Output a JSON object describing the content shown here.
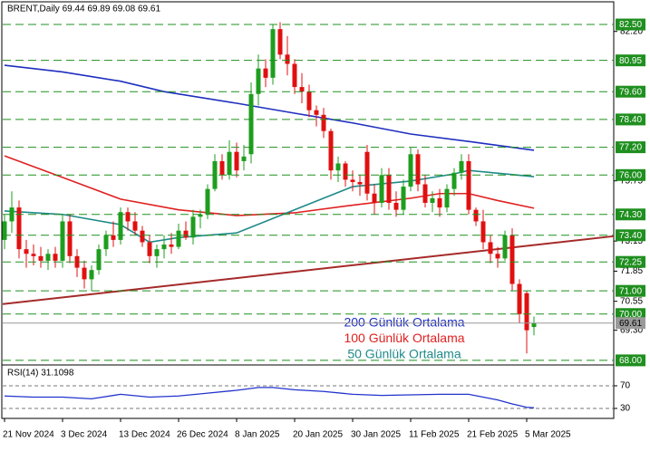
{
  "chart_data": [
    {
      "type": "candlestick",
      "title": "BRENT,Daily  69.44 69.89 69.08 69.61",
      "categories": [
        "21 Nov 2024",
        null,
        null,
        null,
        null,
        null,
        null,
        null,
        "3 Dec 2024",
        null,
        null,
        null,
        null,
        null,
        null,
        null,
        "13 Dec 2024",
        null,
        null,
        null,
        null,
        null,
        null,
        null,
        "26 Dec 2024",
        null,
        null,
        null,
        null,
        null,
        null,
        null,
        "8 Jan 2025",
        null,
        null,
        null,
        null,
        null,
        null,
        null,
        "20 Jan 2025",
        null,
        null,
        null,
        null,
        null,
        null,
        null,
        "30 Jan 2025",
        null,
        null,
        null,
        null,
        null,
        null,
        null,
        "11 Feb 2025",
        null,
        null,
        null,
        null,
        null,
        null,
        null,
        "21 Feb 2025",
        null,
        null,
        null,
        null,
        null,
        null,
        null,
        "5 Mar 2025",
        null
      ],
      "open": [
        73.2,
        74.0,
        74.6,
        72.8,
        72.6,
        72.5,
        72.3,
        72.6,
        72.3,
        74.0,
        72.5,
        72.0,
        71.5,
        71.9,
        72.8,
        73.4,
        73.2,
        74.4,
        74.0,
        73.6,
        73.1,
        72.5,
        72.8,
        73.0,
        72.9,
        73.6,
        73.3,
        74.2,
        74.3,
        75.4,
        76.6,
        76.0,
        77.0,
        76.6,
        76.9,
        79.5,
        80.6,
        80.2,
        82.3,
        81.2,
        80.8,
        79.8,
        79.6,
        78.8,
        78.6,
        77.9,
        76.2,
        76.5,
        75.8,
        75.7,
        77.0,
        75.2,
        74.8,
        76.0,
        74.8,
        74.5,
        75.5,
        76.9,
        75.6,
        74.8,
        75.0,
        74.6,
        75.4,
        76.1,
        76.6,
        74.5,
        74.0,
        73.1,
        72.6,
        72.4,
        73.4,
        71.3,
        70.9,
        69.44
      ],
      "high": [
        74.3,
        75.3,
        74.9,
        73.2,
        73.0,
        72.9,
        72.8,
        72.9,
        74.3,
        74.3,
        72.8,
        72.3,
        72.1,
        73.0,
        73.6,
        74.0,
        74.6,
        74.6,
        74.4,
        73.8,
        73.4,
        73.0,
        73.4,
        73.5,
        73.9,
        74.0,
        74.5,
        74.5,
        75.6,
        76.9,
        76.9,
        77.5,
        77.4,
        77.3,
        80.0,
        81.2,
        81.0,
        82.5,
        82.6,
        82.0,
        81.0,
        80.4,
        79.9,
        79.0,
        78.9,
        78.0,
        76.8,
        76.6,
        76.2,
        76.0,
        77.3,
        75.6,
        76.3,
        76.3,
        75.3,
        75.8,
        77.2,
        77.1,
        76.0,
        75.3,
        75.4,
        75.6,
        76.3,
        76.9,
        76.9,
        74.6,
        74.5,
        73.4,
        72.9,
        73.6,
        73.7,
        71.5,
        71.0,
        69.89
      ],
      "low": [
        72.8,
        73.5,
        72.4,
        72.0,
        72.1,
        72.0,
        71.9,
        72.0,
        72.0,
        72.2,
        71.6,
        71.1,
        71.0,
        71.7,
        72.5,
        72.9,
        73.0,
        73.6,
        73.4,
        72.9,
        72.2,
        72.0,
        72.4,
        72.6,
        72.8,
        73.2,
        73.0,
        73.7,
        74.1,
        75.3,
        75.8,
        75.8,
        75.9,
        76.2,
        76.5,
        79.0,
        79.8,
        79.9,
        81.0,
        80.3,
        79.5,
        79.1,
        78.5,
        78.1,
        77.6,
        75.8,
        75.7,
        75.5,
        75.3,
        75.1,
        74.9,
        74.3,
        74.6,
        74.5,
        74.2,
        74.3,
        75.3,
        75.3,
        74.6,
        74.4,
        74.2,
        74.4,
        75.1,
        75.8,
        74.3,
        73.8,
        72.8,
        72.2,
        72.0,
        72.3,
        71.0,
        69.6,
        68.3,
        69.08
      ],
      "close": [
        74.0,
        74.6,
        72.8,
        72.6,
        72.5,
        72.3,
        72.6,
        72.3,
        74.0,
        72.5,
        72.0,
        71.5,
        71.9,
        72.8,
        73.4,
        73.2,
        74.4,
        74.0,
        73.6,
        73.1,
        72.5,
        72.8,
        73.0,
        72.9,
        73.6,
        73.3,
        74.2,
        74.3,
        75.4,
        76.6,
        76.0,
        77.0,
        76.2,
        76.8,
        79.5,
        80.6,
        80.2,
        82.3,
        81.2,
        80.8,
        79.8,
        79.6,
        78.8,
        78.6,
        77.9,
        76.2,
        76.5,
        75.8,
        75.7,
        75.6,
        75.2,
        74.8,
        76.0,
        74.8,
        74.5,
        75.5,
        76.9,
        75.6,
        74.8,
        75.0,
        74.6,
        75.4,
        76.1,
        76.6,
        74.5,
        74.0,
        73.1,
        72.6,
        72.4,
        73.4,
        71.3,
        70.0,
        69.3,
        69.61
      ],
      "up_color": "#1e9e1e",
      "down_color": "#e01010",
      "ylim": [
        67.84,
        83.44
      ],
      "yticks": [
        {
          "value": 82.2,
          "label": "82.20"
        },
        75.75,
        73.15,
        71.85,
        70.55,
        {
          "value": 69.3,
          "label": "69.30"
        }
      ],
      "levels": [
        {
          "value": 82.5,
          "label": "82.50"
        },
        80.95,
        {
          "value": 79.6,
          "label": "79.60"
        },
        {
          "value": 78.4,
          "label": "78.40"
        },
        {
          "value": 77.2,
          "label": "77.20"
        },
        {
          "value": 76.0,
          "label": "76.00"
        },
        {
          "value": 74.3,
          "label": "74.30"
        },
        {
          "value": 73.4,
          "label": "73.40"
        },
        72.25,
        {
          "value": 71.0,
          "label": "71.00"
        },
        {
          "value": 70.0,
          "label": "70.00"
        },
        {
          "value": 68.0,
          "label": "68.00"
        }
      ],
      "level_color": "#1f8f1f",
      "last": {
        "value": 69.61,
        "label": "69.61"
      },
      "indicators": [
        {
          "name": "200 Günlük Ortalama",
          "color": "#1f2fbf",
          "x": [
            0,
            8,
            16,
            22,
            32,
            40,
            48,
            56,
            64,
            73
          ],
          "values": [
            80.74,
            80.45,
            80.05,
            79.6,
            79.1,
            78.67,
            78.25,
            77.77,
            77.45,
            77.07
          ]
        },
        {
          "name": "100 Günlük Ortalama",
          "color": "#e02020",
          "x": [
            0,
            8,
            16,
            24,
            32,
            40,
            48,
            56,
            60,
            64,
            68,
            73
          ],
          "values": [
            76.83,
            75.9,
            74.96,
            74.5,
            74.25,
            74.37,
            74.7,
            75.0,
            75.2,
            75.2,
            74.9,
            74.57
          ]
        },
        {
          "name": "50 Günlük Ortalama",
          "color": "#1f8a8a",
          "x": [
            0,
            8,
            16,
            20,
            24,
            32,
            40,
            48,
            56,
            62,
            64,
            73
          ],
          "values": [
            74.45,
            74.3,
            73.86,
            73.1,
            73.3,
            73.5,
            74.5,
            75.5,
            75.74,
            76.05,
            76.2,
            75.93
          ]
        }
      ],
      "trendline": {
        "color": "#a52a2a",
        "x": [
          -0.25,
          84
        ],
        "values": [
          70.43,
          73.36
        ]
      }
    },
    {
      "type": "line",
      "title": "RSI(14) 31.1098",
      "color": "#2233cc",
      "x": [
        0,
        4,
        8,
        12,
        16,
        20,
        24,
        28,
        32,
        35,
        37,
        40,
        44,
        48,
        52,
        56,
        60,
        64,
        66,
        68,
        70,
        72,
        73
      ],
      "values": [
        52,
        50,
        50,
        47,
        55,
        50,
        52,
        57,
        62,
        67,
        67,
        63,
        60,
        55,
        53,
        54,
        55,
        55,
        50,
        45,
        38,
        32,
        31.1
      ],
      "ylim": [
        12.4,
        105.2
      ],
      "yticks": [
        70,
        30
      ]
    }
  ]
}
